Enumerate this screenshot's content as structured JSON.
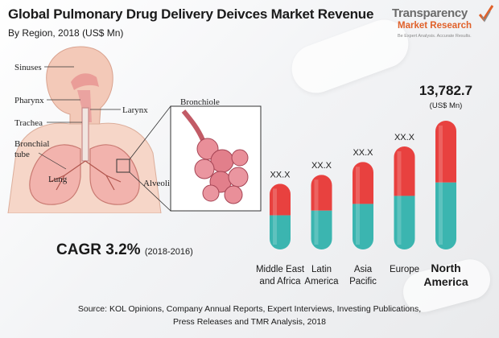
{
  "header": {
    "title": "Global Pulmonary Drug Delivery Deivces Market Revenue",
    "subtitle": "By Region, 2018 (US$ Mn)"
  },
  "logo": {
    "name": "Transparency",
    "sub": "Market Research",
    "tagline": "Be Expert Analysis. Accurate Results."
  },
  "illustration": {
    "labels": {
      "sinuses": "Sinuses",
      "pharynx": "Pharynx",
      "larynx": "Larynx",
      "trachea": "Trachea",
      "bronchial_1": "Bronchial",
      "bronchial_2": "tube",
      "lung": "Lung",
      "bronchiole": "Bronchiole",
      "alveoli": "Alveoli"
    }
  },
  "cagr": {
    "label": "CAGR 3.2%",
    "period": "(2018-2016)"
  },
  "source": {
    "line1": "Source: KOL Opinions, Company Annual Reports, Expert Interviews, Investing Publications,",
    "line2": "Press Releases and TMR Analysis, 2018"
  },
  "colors": {
    "bar_top": "#e8413f",
    "bar_bottom": "#3bb5b0"
  },
  "chart_data": {
    "type": "bar",
    "title": "Global Pulmonary Drug Delivery Deivces Market Revenue",
    "subtitle": "By Region, 2018 (US$ Mn)",
    "categories": [
      [
        "Middle East",
        "and Africa"
      ],
      [
        "Latin",
        "America"
      ],
      [
        "Asia",
        "Pacific"
      ],
      [
        "Europe"
      ],
      [
        "North",
        "America"
      ]
    ],
    "value_labels": [
      "XX.X",
      "XX.X",
      "XX.X",
      "XX.X",
      "13,782.7"
    ],
    "values": [
      null,
      null,
      null,
      null,
      13782.7
    ],
    "relative_heights": [
      0.51,
      0.58,
      0.68,
      0.8,
      1.0
    ],
    "highlight_index": 4,
    "highlight_unit": "(US$ Mn)",
    "grid": false,
    "legend": "none"
  }
}
